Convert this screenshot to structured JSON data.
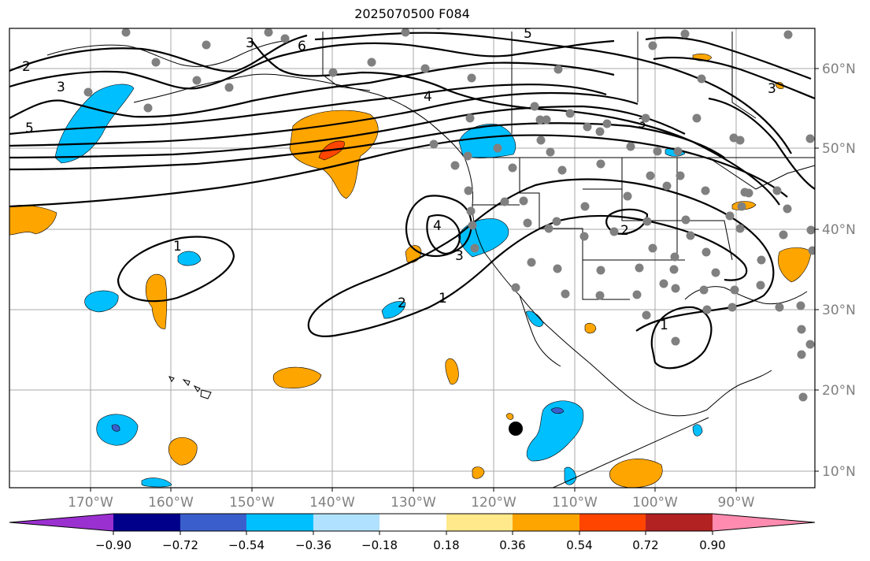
{
  "title": "2025070500 F084",
  "lon_ticks": [
    "170°W",
    "160°W",
    "150°W",
    "140°W",
    "130°W",
    "120°W",
    "110°W",
    "100°W",
    "90°W"
  ],
  "lat_ticks": [
    "60°N",
    "50°N",
    "40°N",
    "30°N",
    "20°N",
    "10°N"
  ],
  "colorbar": {
    "tick_labels": [
      "−0.90",
      "−0.72",
      "−0.54",
      "−0.36",
      "−0.18",
      "0.18",
      "0.36",
      "0.54",
      "0.72",
      "0.90"
    ],
    "colors": [
      "#9b30d0",
      "#00008b",
      "#3a5fcd",
      "#00bfff",
      "#b0e2ff",
      "#ffffff",
      "#ffe98a",
      "#ffa500",
      "#ff4500",
      "#b22222",
      "#ff8cb0"
    ]
  },
  "contour_labels": [
    "2",
    "3",
    "5",
    "3",
    "6",
    "5",
    "4",
    "3",
    "3",
    "1",
    "4",
    "3",
    "2",
    "1",
    "2",
    "1"
  ],
  "map_colors": {
    "positive": "#ffa500",
    "negative": "#00bfff",
    "strong_positive": "#ff4500",
    "strong_negative": "#3a5fcd",
    "station": "#808080",
    "tick_text": "#808080"
  }
}
